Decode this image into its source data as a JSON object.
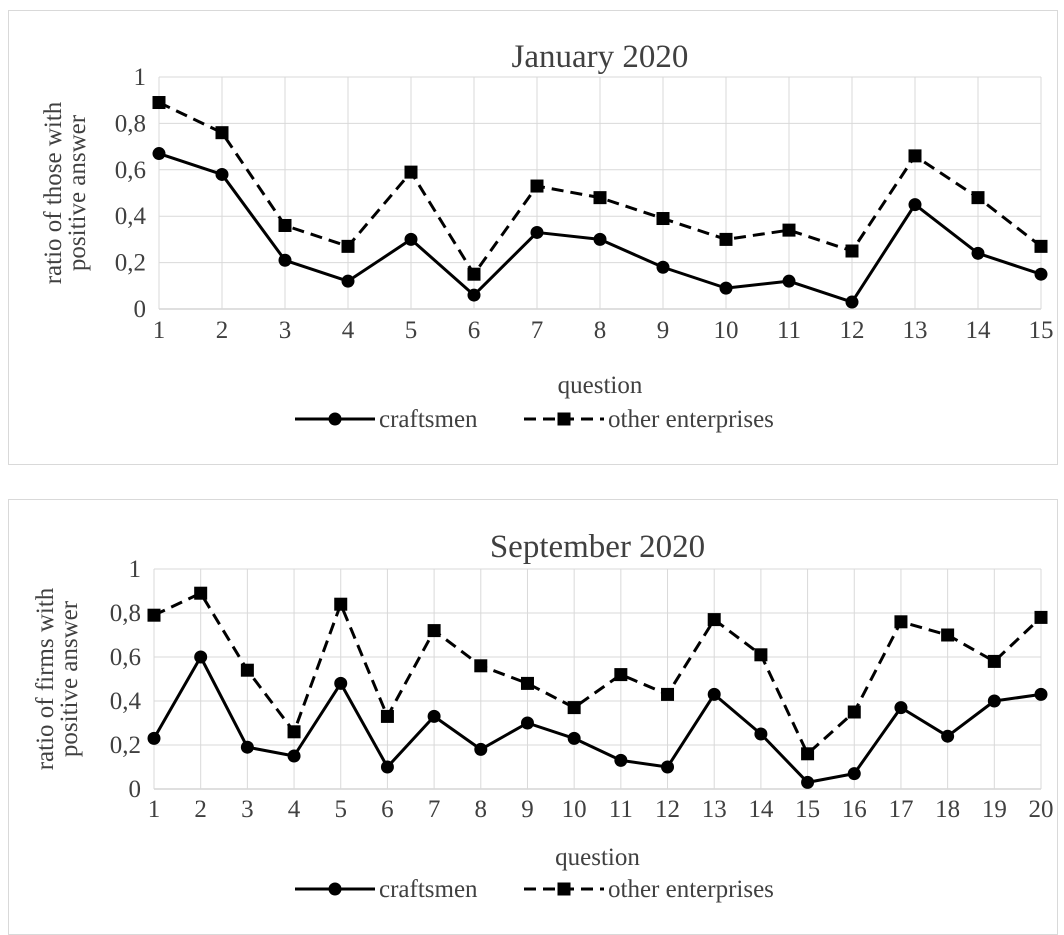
{
  "chart_data": [
    {
      "type": "line",
      "title": "January 2020",
      "xlabel": "question",
      "ylabel": [
        "ratio of those with",
        "positive answer"
      ],
      "categories": [
        "1",
        "2",
        "3",
        "4",
        "5",
        "6",
        "7",
        "8",
        "9",
        "10",
        "11",
        "12",
        "13",
        "14",
        "15"
      ],
      "ylim": [
        0,
        1
      ],
      "yticks": [
        "0",
        "0,2",
        "0,4",
        "0,6",
        "0,8",
        "1"
      ],
      "grid": true,
      "legend_position": "bottom",
      "series": [
        {
          "name": "craftsmen",
          "marker": "circle",
          "dash": "solid",
          "values": [
            0.67,
            0.58,
            0.21,
            0.12,
            0.3,
            0.06,
            0.33,
            0.3,
            0.18,
            0.09,
            0.12,
            0.03,
            0.45,
            0.24,
            0.15
          ]
        },
        {
          "name": "other enterprises",
          "marker": "square",
          "dash": "dashed",
          "values": [
            0.89,
            0.76,
            0.36,
            0.27,
            0.59,
            0.15,
            0.53,
            0.48,
            0.39,
            0.3,
            0.34,
            0.25,
            0.66,
            0.48,
            0.27
          ]
        }
      ]
    },
    {
      "type": "line",
      "title": "September 2020",
      "xlabel": "question",
      "ylabel": [
        "ratio of firms with",
        "positive answer"
      ],
      "categories": [
        "1",
        "2",
        "3",
        "4",
        "5",
        "6",
        "7",
        "8",
        "9",
        "10",
        "11",
        "12",
        "13",
        "14",
        "15",
        "16",
        "17",
        "18",
        "19",
        "20"
      ],
      "ylim": [
        0,
        1
      ],
      "yticks": [
        "0",
        "0,2",
        "0,4",
        "0,6",
        "0,8",
        "1"
      ],
      "grid": true,
      "legend_position": "bottom",
      "series": [
        {
          "name": "craftsmen",
          "marker": "circle",
          "dash": "solid",
          "values": [
            0.23,
            0.6,
            0.19,
            0.15,
            0.48,
            0.1,
            0.33,
            0.18,
            0.3,
            0.23,
            0.13,
            0.1,
            0.43,
            0.25,
            0.03,
            0.07,
            0.37,
            0.24,
            0.4,
            0.43
          ]
        },
        {
          "name": "other enterprises",
          "marker": "square",
          "dash": "dashed",
          "values": [
            0.79,
            0.89,
            0.54,
            0.26,
            0.84,
            0.33,
            0.72,
            0.56,
            0.48,
            0.37,
            0.52,
            0.43,
            0.77,
            0.61,
            0.16,
            0.35,
            0.76,
            0.7,
            0.58,
            0.78
          ]
        }
      ]
    }
  ]
}
